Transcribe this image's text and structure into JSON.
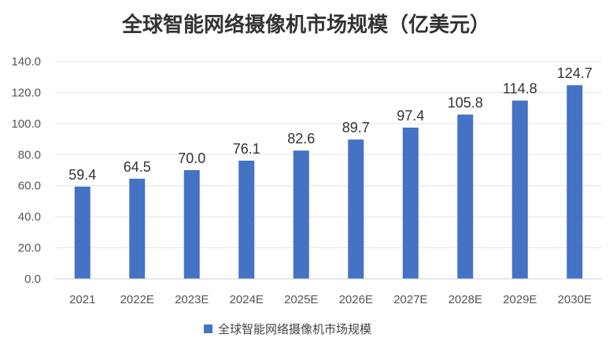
{
  "chart_data": {
    "type": "bar",
    "title": "全球智能网络摄像机市场规模（亿美元）",
    "categories": [
      "2021",
      "2022E",
      "2023E",
      "2024E",
      "2025E",
      "2026E",
      "2027E",
      "2028E",
      "2029E",
      "2030E"
    ],
    "series": [
      {
        "name": "全球智能网络摄像机市场规模",
        "values": [
          59.4,
          64.5,
          70.0,
          76.1,
          82.6,
          89.7,
          97.4,
          105.8,
          114.8,
          124.7
        ],
        "data_labels": [
          "59.4",
          "64.5",
          "70.0",
          "76.1",
          "82.6",
          "89.7",
          "97.4",
          "105.8",
          "114.8",
          "124.7"
        ],
        "color": "#4472c4"
      }
    ],
    "xlabel": "",
    "ylabel": "",
    "ylim": [
      0,
      140
    ],
    "y_ticks": [
      0,
      20,
      40,
      60,
      80,
      100,
      120,
      140
    ],
    "y_tick_labels": [
      "0.0",
      "20.0",
      "40.0",
      "60.0",
      "80.0",
      "100.0",
      "120.0",
      "140.0"
    ],
    "grid": true,
    "legend_position": "bottom"
  }
}
